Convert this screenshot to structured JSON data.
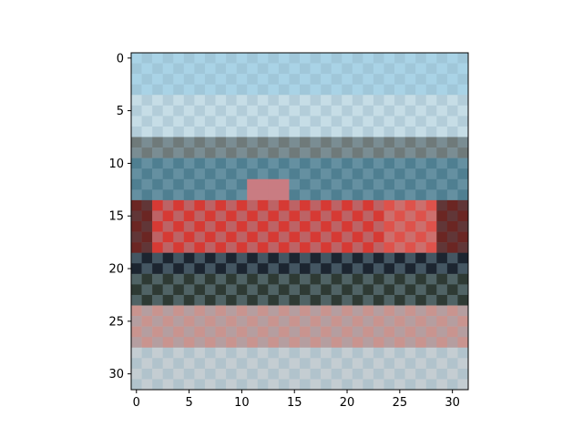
{
  "chart_data": {
    "type": "heatmap",
    "title": "",
    "xlabel": "",
    "ylabel": "",
    "image_shape": [
      32,
      32
    ],
    "xlim": [
      -0.5,
      31.5
    ],
    "ylim": [
      31.5,
      -0.5
    ],
    "x_ticks": [
      0,
      5,
      10,
      15,
      20,
      25,
      30
    ],
    "y_ticks": [
      0,
      5,
      10,
      15,
      20,
      25,
      30
    ],
    "x_tick_labels": [
      "0",
      "5",
      "10",
      "15",
      "20",
      "25",
      "30"
    ],
    "y_tick_labels": [
      "0",
      "5",
      "10",
      "15",
      "20",
      "25",
      "30"
    ],
    "image_content": "low-resolution 32x32 photo of a red boat on water, rendered with a checkerboard texture",
    "color_bands": [
      {
        "rows": [
          0,
          3
        ],
        "color": "#a9d3e6"
      },
      {
        "rows": [
          4,
          7
        ],
        "color": "#c6dde6"
      },
      {
        "rows": [
          8,
          9
        ],
        "color": "#6f7a7a"
      },
      {
        "rows": [
          10,
          13
        ],
        "color": "#4f7f91"
      },
      {
        "rows": [
          14,
          18
        ],
        "color": "#d63a34"
      },
      {
        "rows": [
          19,
          20
        ],
        "color": "#1c2530"
      },
      {
        "rows": [
          21,
          23
        ],
        "color": "#2e3a34"
      },
      {
        "rows": [
          24,
          27
        ],
        "color": "#c9948f"
      },
      {
        "rows": [
          28,
          31
        ],
        "color": "#c4cdd2"
      }
    ],
    "checker_secondary": "#8fb0c0"
  }
}
